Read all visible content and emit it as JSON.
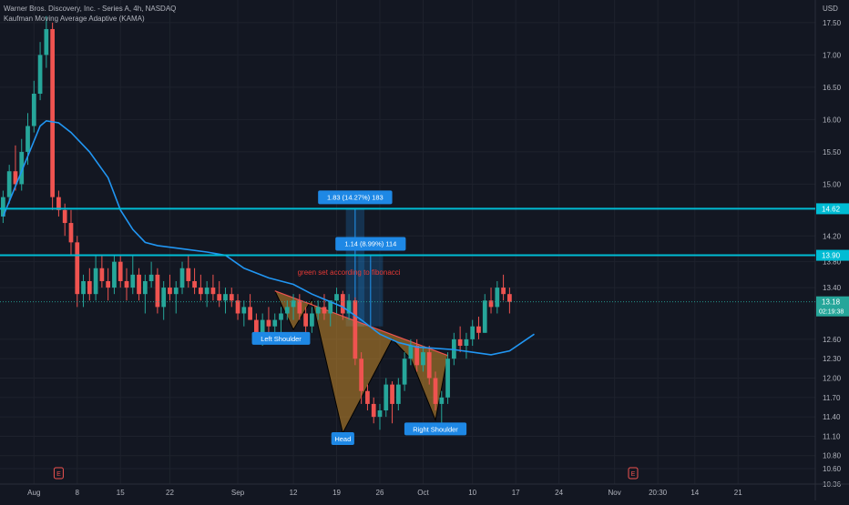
{
  "header": {
    "symbol_line": "Warner Bros. Discovery, Inc. - Series A, 4h, NASDAQ",
    "indicator_line": "Kaufman Moving Average Adaptive (KAMA)"
  },
  "currency": "USD",
  "colors": {
    "background": "#131722",
    "up": "#26a69a",
    "down": "#ef5350",
    "kama": "#2196f3",
    "level_line": "#00bcd4",
    "pattern_fill": "#c98b2a",
    "tag_bg": "#1e88e5"
  },
  "last_price": {
    "value": "13.18",
    "countdown": "02:19:38"
  },
  "annotation_text": "green set according to fibonacci",
  "chart_data": {
    "type": "candlestick",
    "title": "Warner Bros. Discovery, Inc. - Series A, 4h, NASDAQ",
    "interval": "4h",
    "exchange": "NASDAQ",
    "ylim": [
      10.36,
      17.85
    ],
    "xlim": [
      0,
      132
    ],
    "y_ticks": [
      "17.50",
      "17.00",
      "16.50",
      "16.00",
      "15.50",
      "15.00",
      "14.20",
      "13.80",
      "13.40",
      "12.60",
      "12.30",
      "12.00",
      "11.70",
      "11.40",
      "11.10",
      "10.80",
      "10.60",
      "10.36"
    ],
    "x_ticks": [
      {
        "label": "Aug",
        "bar": 5
      },
      {
        "label": "8",
        "bar": 12
      },
      {
        "label": "15",
        "bar": 19
      },
      {
        "label": "22",
        "bar": 27
      },
      {
        "label": "Sep",
        "bar": 38
      },
      {
        "label": "12",
        "bar": 47
      },
      {
        "label": "19",
        "bar": 54
      },
      {
        "label": "26",
        "bar": 61
      },
      {
        "label": "Oct",
        "bar": 68
      },
      {
        "label": "10",
        "bar": 76
      },
      {
        "label": "17",
        "bar": 83
      },
      {
        "label": "24",
        "bar": 90
      },
      {
        "label": "Nov",
        "bar": 99
      },
      {
        "label": "20:30",
        "bar": 106
      },
      {
        "label": "14",
        "bar": 112
      },
      {
        "label": "21",
        "bar": 119
      }
    ],
    "earnings_markers": [
      9,
      102
    ],
    "levels": [
      {
        "price": 14.62,
        "label": "14.62"
      },
      {
        "price": 13.9,
        "label": "13.90"
      }
    ],
    "candles": [
      [
        14.5,
        14.9,
        14.4,
        14.8
      ],
      [
        14.8,
        15.3,
        14.7,
        15.2
      ],
      [
        15.2,
        15.6,
        14.9,
        15.0
      ],
      [
        15.0,
        15.7,
        14.9,
        15.5
      ],
      [
        15.5,
        16.1,
        15.3,
        15.9
      ],
      [
        15.9,
        16.6,
        15.8,
        16.4
      ],
      [
        16.4,
        17.2,
        16.3,
        17.0
      ],
      [
        17.0,
        17.6,
        16.8,
        17.4
      ],
      [
        17.4,
        17.5,
        14.6,
        14.8
      ],
      [
        14.8,
        14.9,
        14.5,
        14.6
      ],
      [
        14.6,
        14.7,
        14.2,
        14.4
      ],
      [
        14.4,
        14.6,
        13.9,
        14.1
      ],
      [
        14.1,
        14.2,
        13.1,
        13.3
      ],
      [
        13.3,
        13.6,
        13.1,
        13.5
      ],
      [
        13.5,
        13.7,
        13.2,
        13.3
      ],
      [
        13.3,
        13.9,
        13.2,
        13.7
      ],
      [
        13.7,
        13.9,
        13.4,
        13.5
      ],
      [
        13.5,
        13.7,
        13.2,
        13.4
      ],
      [
        13.4,
        13.9,
        13.3,
        13.8
      ],
      [
        13.8,
        13.9,
        13.4,
        13.5
      ],
      [
        13.5,
        13.7,
        13.2,
        13.4
      ],
      [
        13.4,
        13.9,
        13.3,
        13.6
      ],
      [
        13.6,
        13.7,
        13.2,
        13.3
      ],
      [
        13.3,
        13.6,
        13.0,
        13.5
      ],
      [
        13.5,
        13.8,
        13.4,
        13.6
      ],
      [
        13.6,
        13.7,
        13.0,
        13.1
      ],
      [
        13.1,
        13.5,
        12.9,
        13.4
      ],
      [
        13.4,
        13.6,
        13.2,
        13.3
      ],
      [
        13.3,
        13.5,
        13.0,
        13.4
      ],
      [
        13.4,
        13.8,
        13.3,
        13.7
      ],
      [
        13.7,
        13.9,
        13.4,
        13.5
      ],
      [
        13.5,
        13.7,
        13.3,
        13.4
      ],
      [
        13.4,
        13.6,
        13.2,
        13.3
      ],
      [
        13.3,
        13.5,
        13.1,
        13.4
      ],
      [
        13.4,
        13.6,
        13.2,
        13.3
      ],
      [
        13.3,
        13.5,
        13.1,
        13.2
      ],
      [
        13.2,
        13.4,
        13.0,
        13.3
      ],
      [
        13.3,
        13.4,
        13.1,
        13.2
      ],
      [
        13.2,
        13.3,
        12.9,
        13.0
      ],
      [
        13.0,
        13.2,
        12.8,
        13.1
      ],
      [
        13.1,
        13.3,
        12.9,
        12.9
      ],
      [
        12.9,
        13.0,
        12.6,
        12.7
      ],
      [
        12.7,
        13.0,
        12.5,
        12.9
      ],
      [
        12.9,
        13.1,
        12.7,
        12.8
      ],
      [
        12.8,
        13.0,
        12.6,
        12.9
      ],
      [
        12.9,
        13.1,
        12.7,
        13.0
      ],
      [
        13.0,
        13.2,
        12.9,
        13.1
      ],
      [
        13.1,
        13.3,
        12.9,
        13.2
      ],
      [
        13.2,
        13.3,
        12.9,
        13.0
      ],
      [
        13.0,
        13.1,
        12.7,
        12.8
      ],
      [
        12.8,
        13.1,
        12.7,
        13.0
      ],
      [
        13.0,
        13.2,
        12.9,
        13.1
      ],
      [
        13.1,
        13.3,
        12.9,
        13.0
      ],
      [
        13.0,
        13.2,
        12.8,
        13.2
      ],
      [
        13.2,
        13.4,
        13.0,
        13.3
      ],
      [
        13.3,
        13.35,
        12.9,
        13.0
      ],
      [
        13.0,
        13.3,
        12.9,
        13.2
      ],
      [
        13.2,
        13.25,
        12.2,
        12.3
      ],
      [
        12.3,
        12.4,
        11.6,
        11.8
      ],
      [
        11.8,
        11.9,
        11.5,
        11.6
      ],
      [
        11.6,
        11.7,
        11.3,
        11.4
      ],
      [
        11.4,
        11.6,
        11.2,
        11.5
      ],
      [
        11.5,
        12.0,
        11.4,
        11.9
      ],
      [
        11.9,
        11.95,
        11.3,
        11.6
      ],
      [
        11.6,
        12.0,
        11.5,
        11.9
      ],
      [
        11.9,
        12.4,
        11.8,
        12.3
      ],
      [
        12.3,
        12.6,
        12.2,
        12.5
      ],
      [
        12.5,
        12.6,
        12.1,
        12.2
      ],
      [
        12.2,
        12.5,
        12.1,
        12.4
      ],
      [
        12.4,
        12.5,
        11.9,
        12.0
      ],
      [
        12.0,
        12.1,
        11.5,
        11.6
      ],
      [
        11.6,
        11.8,
        11.3,
        11.7
      ],
      [
        11.7,
        12.4,
        11.6,
        12.3
      ],
      [
        12.3,
        12.7,
        12.2,
        12.6
      ],
      [
        12.6,
        12.8,
        12.4,
        12.5
      ],
      [
        12.5,
        12.7,
        12.3,
        12.6
      ],
      [
        12.6,
        12.9,
        12.5,
        12.8
      ],
      [
        12.8,
        12.95,
        12.6,
        12.7
      ],
      [
        12.7,
        13.3,
        12.7,
        13.2
      ],
      [
        13.2,
        13.4,
        13.0,
        13.1
      ],
      [
        13.1,
        13.5,
        13.0,
        13.4
      ],
      [
        13.4,
        13.6,
        13.2,
        13.3
      ],
      [
        13.3,
        13.4,
        13.0,
        13.18
      ]
    ],
    "kama": [
      [
        0,
        14.5
      ],
      [
        3,
        15.2
      ],
      [
        6,
        15.9
      ],
      [
        7,
        15.98
      ],
      [
        9,
        15.95
      ],
      [
        11,
        15.8
      ],
      [
        14,
        15.5
      ],
      [
        17,
        15.1
      ],
      [
        19,
        14.6
      ],
      [
        21,
        14.3
      ],
      [
        23,
        14.1
      ],
      [
        25,
        14.05
      ],
      [
        29,
        14.0
      ],
      [
        33,
        13.95
      ],
      [
        36,
        13.9
      ],
      [
        39,
        13.7
      ],
      [
        43,
        13.55
      ],
      [
        47,
        13.45
      ],
      [
        50,
        13.3
      ],
      [
        52,
        13.22
      ],
      [
        55,
        13.1
      ],
      [
        58,
        12.9
      ],
      [
        61,
        12.68
      ],
      [
        64,
        12.55
      ],
      [
        67,
        12.48
      ],
      [
        70,
        12.46
      ],
      [
        73,
        12.44
      ],
      [
        76,
        12.4
      ],
      [
        79,
        12.36
      ],
      [
        82,
        12.42
      ],
      [
        84,
        12.55
      ],
      [
        86,
        12.68
      ]
    ],
    "pattern": {
      "points": [
        [
          44,
          13.35
        ],
        [
          47,
          12.75
        ],
        [
          50,
          13.22
        ],
        [
          55,
          11.15
        ],
        [
          63,
          12.6
        ],
        [
          66,
          12.3
        ],
        [
          70,
          11.35
        ],
        [
          72,
          12.35
        ]
      ],
      "neckline": [
        [
          44,
          13.35
        ],
        [
          72,
          12.35
        ]
      ],
      "labels": [
        {
          "text": "Left Shoulder",
          "bar": 45,
          "price": 12.6
        },
        {
          "text": "Head",
          "bar": 55,
          "price": 11.05
        },
        {
          "text": "Right Shoulder",
          "bar": 70,
          "price": 11.2
        }
      ]
    },
    "measurements": [
      {
        "label": "1.83 (14.27%) 183",
        "bar_from": 56,
        "bar_to": 58,
        "top": 14.62,
        "bottom": 12.8
      },
      {
        "label": "1.14 (8.99%) 114",
        "bar_from": 58,
        "bar_to": 61,
        "top": 13.9,
        "bottom": 12.8
      }
    ],
    "text_annotation": {
      "bar": 56,
      "price": 13.6
    },
    "last_price": 13.18
  }
}
